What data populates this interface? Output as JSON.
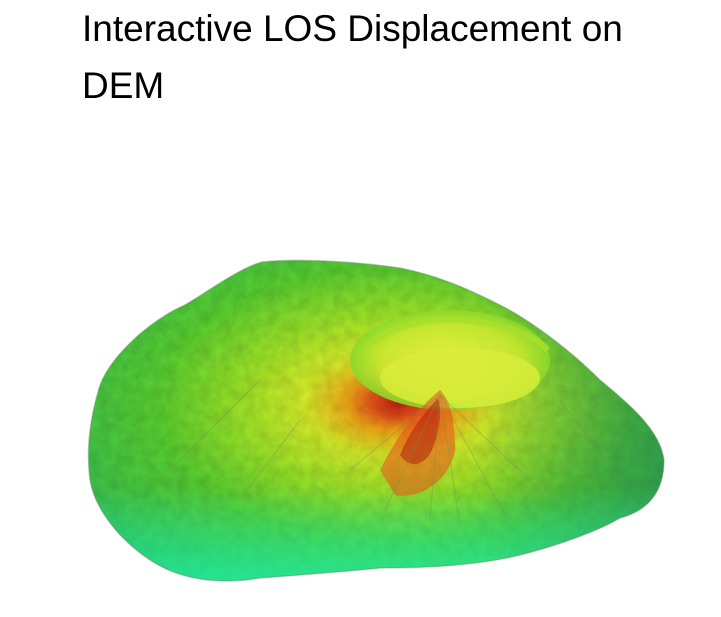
{
  "plot": {
    "title": "Interactive LOS Displacement on DEM"
  },
  "surface": {
    "type": "3d-surface",
    "colorscale": [
      "#1ff2a8",
      "#3fd65a",
      "#7fdc2a",
      "#d8f02a",
      "#f2d21a",
      "#e8501a",
      "#8a1a10"
    ],
    "shading_color": "#9a9a9a"
  }
}
